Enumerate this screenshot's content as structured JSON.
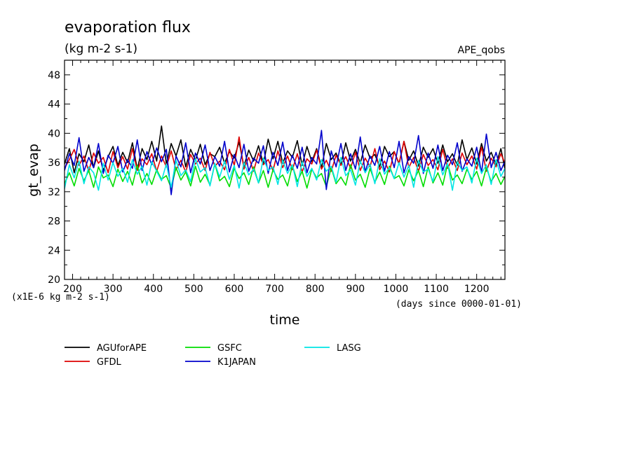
{
  "header": {
    "title": "evaporation flux",
    "units": "(kg m-2 s-1)",
    "experiment": "APE_qobs"
  },
  "notes": {
    "y_multiplier": "(x1E-6 kg m-2 s-1)",
    "x_reference": "(days since 0000-01-01)"
  },
  "chart_data": {
    "type": "line",
    "title": "evaporation flux",
    "subtitle": "(kg m-2 s-1)",
    "xlabel": "time",
    "ylabel": "gt_evap",
    "xlim": [
      180,
      1270
    ],
    "ylim": [
      20,
      50
    ],
    "x_ticks": [
      "200",
      "300",
      "400",
      "500",
      "600",
      "700",
      "800",
      "900",
      "1000",
      "1100",
      "1200"
    ],
    "x_tick_values": [
      200,
      300,
      400,
      500,
      600,
      700,
      800,
      900,
      1000,
      1100,
      1200
    ],
    "y_ticks": [
      "20",
      "24",
      "28",
      "32",
      "36",
      "40",
      "44",
      "48"
    ],
    "y_tick_values": [
      20,
      24,
      28,
      32,
      36,
      40,
      44,
      48
    ],
    "x": [
      180,
      192,
      204,
      216,
      228,
      240,
      252,
      264,
      276,
      288,
      300,
      312,
      324,
      336,
      348,
      360,
      372,
      384,
      396,
      408,
      420,
      432,
      444,
      456,
      468,
      480,
      492,
      504,
      516,
      528,
      540,
      552,
      564,
      576,
      588,
      600,
      612,
      624,
      636,
      648,
      660,
      672,
      684,
      696,
      708,
      720,
      732,
      744,
      756,
      768,
      780,
      792,
      804,
      816,
      828,
      840,
      852,
      864,
      876,
      888,
      900,
      912,
      924,
      936,
      948,
      960,
      972,
      984,
      996,
      1008,
      1020,
      1032,
      1044,
      1056,
      1068,
      1080,
      1092,
      1104,
      1116,
      1128,
      1140,
      1152,
      1164,
      1176,
      1188,
      1200,
      1212,
      1224,
      1236,
      1248,
      1260,
      1270
    ],
    "series": [
      {
        "name": "AGUforAPE",
        "color": "#000000",
        "values": [
          35.8,
          37.9,
          34.6,
          37.2,
          36.1,
          38.4,
          35.3,
          37.6,
          34.9,
          36.8,
          38.2,
          35.6,
          37.4,
          36.0,
          38.7,
          35.1,
          37.9,
          36.4,
          38.9,
          36.2,
          41.0,
          35.8,
          38.6,
          36.9,
          39.1,
          35.4,
          37.8,
          36.3,
          38.5,
          35.7,
          37.2,
          36.8,
          38.1,
          35.9,
          37.5,
          36.6,
          38.8,
          35.5,
          37.7,
          36.2,
          38.3,
          35.8,
          39.2,
          36.5,
          38.9,
          35.9,
          37.6,
          36.7,
          39.0,
          35.6,
          38.2,
          36.1,
          37.9,
          35.3,
          38.6,
          36.4,
          37.3,
          35.7,
          38.7,
          36.2,
          37.8,
          35.9,
          38.4,
          36.6,
          37.1,
          35.4,
          38.2,
          36.8,
          37.5,
          35.8,
          38.9,
          36.3,
          37.6,
          35.5,
          38.1,
          36.7,
          37.9,
          35.9,
          38.4,
          36.1,
          37.2,
          35.6,
          39.1,
          36.4,
          38.0,
          35.8,
          38.6,
          36.2,
          37.4,
          35.7,
          37.9,
          35.1
        ]
      },
      {
        "name": "GFDL",
        "color": "#dd0000",
        "values": [
          35.2,
          36.4,
          37.8,
          35.6,
          36.9,
          34.8,
          37.3,
          35.9,
          36.7,
          34.6,
          37.5,
          35.3,
          36.8,
          35.1,
          37.9,
          34.9,
          36.5,
          35.7,
          37.2,
          34.8,
          36.9,
          35.4,
          37.6,
          35.0,
          36.3,
          34.7,
          37.1,
          35.8,
          36.6,
          34.9,
          37.4,
          35.5,
          36.2,
          35.0,
          37.8,
          35.6,
          39.5,
          35.1,
          36.7,
          34.8,
          37.3,
          35.7,
          36.4,
          34.9,
          37.6,
          35.3,
          36.9,
          35.0,
          37.2,
          34.7,
          36.5,
          35.8,
          37.7,
          35.1,
          36.3,
          34.8,
          37.0,
          35.6,
          36.8,
          35.2,
          37.4,
          34.9,
          36.6,
          35.4,
          37.9,
          35.0,
          36.2,
          34.7,
          37.5,
          35.9,
          38.9,
          35.3,
          36.7,
          34.8,
          37.1,
          35.6,
          36.4,
          35.0,
          37.8,
          35.2,
          36.5,
          34.9,
          37.3,
          35.7,
          36.9,
          35.1,
          38.1,
          34.8,
          36.6,
          35.4,
          37.2,
          35.9
        ]
      },
      {
        "name": "GSFC",
        "color": "#00dd00",
        "values": [
          33.1,
          34.6,
          32.8,
          35.2,
          33.5,
          34.9,
          32.6,
          35.4,
          33.9,
          34.3,
          32.7,
          35.1,
          33.4,
          34.8,
          32.9,
          35.6,
          33.2,
          34.5,
          33.0,
          35.0,
          33.7,
          34.2,
          32.5,
          35.3,
          33.6,
          34.7,
          32.8,
          35.5,
          33.3,
          34.4,
          32.9,
          35.8,
          33.5,
          34.1,
          32.7,
          35.2,
          33.8,
          34.6,
          33.0,
          35.4,
          33.2,
          34.9,
          32.6,
          35.0,
          33.7,
          34.3,
          32.8,
          35.6,
          33.4,
          34.8,
          32.5,
          35.1,
          33.9,
          34.5,
          32.7,
          35.3,
          33.1,
          34.0,
          32.9,
          35.7,
          33.6,
          34.4,
          32.6,
          35.2,
          33.3,
          34.7,
          33.0,
          35.5,
          33.8,
          34.2,
          32.8,
          35.0,
          33.5,
          34.9,
          32.7,
          35.4,
          33.2,
          34.6,
          32.9,
          35.8,
          33.6,
          34.3,
          33.1,
          35.1,
          33.7,
          34.8,
          32.8,
          35.3,
          33.4,
          34.5,
          33.0,
          34.1
        ]
      },
      {
        "name": "K1JAPAN",
        "color": "#0000cc",
        "values": [
          34.9,
          37.2,
          35.6,
          39.4,
          34.8,
          36.7,
          35.3,
          38.6,
          34.5,
          37.0,
          35.9,
          38.2,
          34.7,
          36.4,
          35.2,
          39.1,
          34.9,
          37.5,
          35.7,
          38.0,
          36.1,
          37.8,
          31.6,
          36.9,
          35.4,
          38.7,
          34.6,
          37.3,
          35.8,
          38.4,
          34.9,
          36.8,
          35.5,
          38.9,
          34.7,
          37.1,
          35.3,
          38.5,
          34.8,
          36.6,
          35.9,
          38.3,
          34.5,
          37.4,
          35.6,
          38.8,
          34.9,
          37.0,
          35.2,
          38.1,
          34.6,
          36.7,
          35.8,
          40.4,
          32.3,
          37.6,
          35.4,
          38.6,
          34.9,
          37.2,
          35.1,
          39.5,
          34.7,
          36.9,
          35.6,
          38.2,
          34.8,
          37.5,
          35.3,
          38.9,
          34.6,
          36.8,
          35.9,
          39.7,
          34.5,
          37.3,
          35.2,
          38.4,
          34.9,
          37.0,
          35.7,
          38.7,
          34.8,
          36.5,
          35.5,
          38.1,
          34.6,
          39.9,
          35.3,
          37.4,
          34.9,
          36.2
        ]
      },
      {
        "name": "LASG",
        "color": "#00e5e5",
        "values": [
          32.4,
          35.7,
          33.9,
          36.2,
          33.1,
          35.4,
          34.6,
          32.2,
          35.9,
          33.6,
          36.0,
          34.1,
          35.2,
          33.3,
          36.4,
          34.4,
          35.5,
          32.9,
          36.1,
          34.8,
          33.5,
          35.8,
          32.6,
          36.3,
          34.2,
          35.0,
          33.4,
          36.5,
          34.7,
          35.3,
          32.8,
          35.9,
          34.0,
          36.2,
          33.7,
          35.6,
          32.5,
          36.0,
          34.3,
          35.1,
          33.2,
          36.6,
          34.9,
          35.4,
          33.0,
          36.3,
          34.5,
          35.7,
          32.7,
          36.1,
          34.1,
          35.2,
          33.6,
          36.4,
          34.8,
          35.5,
          33.3,
          36.7,
          34.2,
          35.0,
          32.9,
          36.2,
          34.6,
          35.8,
          33.1,
          36.5,
          34.4,
          35.3,
          33.8,
          36.0,
          34.0,
          35.6,
          32.6,
          36.3,
          34.7,
          35.1,
          33.4,
          36.8,
          34.3,
          35.9,
          32.2,
          36.1,
          34.9,
          35.4,
          33.2,
          36.6,
          34.5,
          35.7,
          33.0,
          36.4,
          34.1,
          35.2
        ]
      }
    ],
    "legend": "bottom",
    "grid": false
  }
}
